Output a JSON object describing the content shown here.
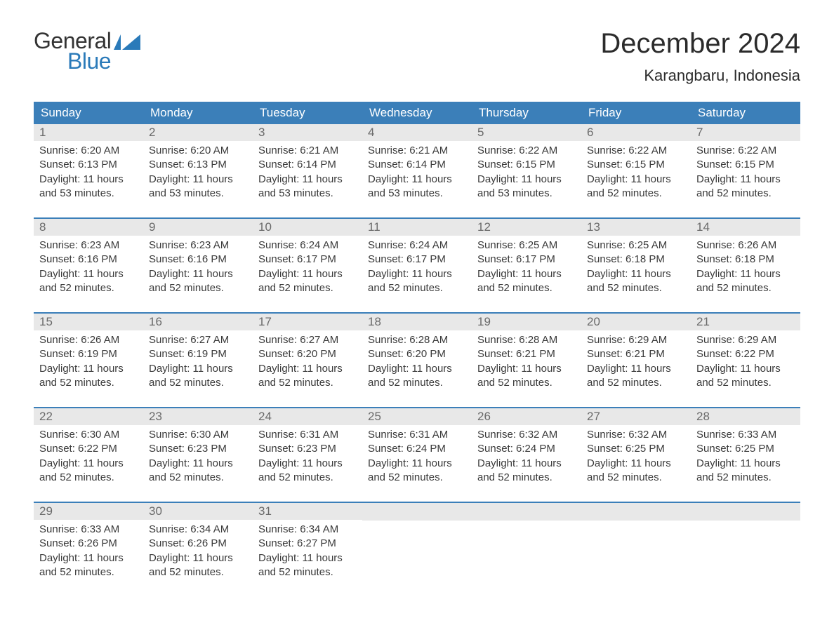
{
  "logo": {
    "general": "General",
    "blue": "Blue",
    "flag_color": "#2a7ab9"
  },
  "title": "December 2024",
  "location": "Karangbaru, Indonesia",
  "colors": {
    "header_bg": "#3b7fb9",
    "header_text": "#ffffff",
    "daynum_bg": "#e8e8e8",
    "daynum_text": "#6a6a6a",
    "body_text": "#3a3a3a",
    "week_border": "#3b7fb9",
    "logo_blue": "#2a7ab9",
    "logo_dark": "#333333",
    "page_bg": "#ffffff"
  },
  "typography": {
    "title_fontsize": 40,
    "location_fontsize": 22,
    "dayhead_fontsize": 17,
    "daynum_fontsize": 17,
    "daydata_fontsize": 15
  },
  "day_headers": [
    "Sunday",
    "Monday",
    "Tuesday",
    "Wednesday",
    "Thursday",
    "Friday",
    "Saturday"
  ],
  "weeks": [
    [
      {
        "n": "1",
        "sunrise": "Sunrise: 6:20 AM",
        "sunset": "Sunset: 6:13 PM",
        "d1": "Daylight: 11 hours",
        "d2": "and 53 minutes."
      },
      {
        "n": "2",
        "sunrise": "Sunrise: 6:20 AM",
        "sunset": "Sunset: 6:13 PM",
        "d1": "Daylight: 11 hours",
        "d2": "and 53 minutes."
      },
      {
        "n": "3",
        "sunrise": "Sunrise: 6:21 AM",
        "sunset": "Sunset: 6:14 PM",
        "d1": "Daylight: 11 hours",
        "d2": "and 53 minutes."
      },
      {
        "n": "4",
        "sunrise": "Sunrise: 6:21 AM",
        "sunset": "Sunset: 6:14 PM",
        "d1": "Daylight: 11 hours",
        "d2": "and 53 minutes."
      },
      {
        "n": "5",
        "sunrise": "Sunrise: 6:22 AM",
        "sunset": "Sunset: 6:15 PM",
        "d1": "Daylight: 11 hours",
        "d2": "and 53 minutes."
      },
      {
        "n": "6",
        "sunrise": "Sunrise: 6:22 AM",
        "sunset": "Sunset: 6:15 PM",
        "d1": "Daylight: 11 hours",
        "d2": "and 52 minutes."
      },
      {
        "n": "7",
        "sunrise": "Sunrise: 6:22 AM",
        "sunset": "Sunset: 6:15 PM",
        "d1": "Daylight: 11 hours",
        "d2": "and 52 minutes."
      }
    ],
    [
      {
        "n": "8",
        "sunrise": "Sunrise: 6:23 AM",
        "sunset": "Sunset: 6:16 PM",
        "d1": "Daylight: 11 hours",
        "d2": "and 52 minutes."
      },
      {
        "n": "9",
        "sunrise": "Sunrise: 6:23 AM",
        "sunset": "Sunset: 6:16 PM",
        "d1": "Daylight: 11 hours",
        "d2": "and 52 minutes."
      },
      {
        "n": "10",
        "sunrise": "Sunrise: 6:24 AM",
        "sunset": "Sunset: 6:17 PM",
        "d1": "Daylight: 11 hours",
        "d2": "and 52 minutes."
      },
      {
        "n": "11",
        "sunrise": "Sunrise: 6:24 AM",
        "sunset": "Sunset: 6:17 PM",
        "d1": "Daylight: 11 hours",
        "d2": "and 52 minutes."
      },
      {
        "n": "12",
        "sunrise": "Sunrise: 6:25 AM",
        "sunset": "Sunset: 6:17 PM",
        "d1": "Daylight: 11 hours",
        "d2": "and 52 minutes."
      },
      {
        "n": "13",
        "sunrise": "Sunrise: 6:25 AM",
        "sunset": "Sunset: 6:18 PM",
        "d1": "Daylight: 11 hours",
        "d2": "and 52 minutes."
      },
      {
        "n": "14",
        "sunrise": "Sunrise: 6:26 AM",
        "sunset": "Sunset: 6:18 PM",
        "d1": "Daylight: 11 hours",
        "d2": "and 52 minutes."
      }
    ],
    [
      {
        "n": "15",
        "sunrise": "Sunrise: 6:26 AM",
        "sunset": "Sunset: 6:19 PM",
        "d1": "Daylight: 11 hours",
        "d2": "and 52 minutes."
      },
      {
        "n": "16",
        "sunrise": "Sunrise: 6:27 AM",
        "sunset": "Sunset: 6:19 PM",
        "d1": "Daylight: 11 hours",
        "d2": "and 52 minutes."
      },
      {
        "n": "17",
        "sunrise": "Sunrise: 6:27 AM",
        "sunset": "Sunset: 6:20 PM",
        "d1": "Daylight: 11 hours",
        "d2": "and 52 minutes."
      },
      {
        "n": "18",
        "sunrise": "Sunrise: 6:28 AM",
        "sunset": "Sunset: 6:20 PM",
        "d1": "Daylight: 11 hours",
        "d2": "and 52 minutes."
      },
      {
        "n": "19",
        "sunrise": "Sunrise: 6:28 AM",
        "sunset": "Sunset: 6:21 PM",
        "d1": "Daylight: 11 hours",
        "d2": "and 52 minutes."
      },
      {
        "n": "20",
        "sunrise": "Sunrise: 6:29 AM",
        "sunset": "Sunset: 6:21 PM",
        "d1": "Daylight: 11 hours",
        "d2": "and 52 minutes."
      },
      {
        "n": "21",
        "sunrise": "Sunrise: 6:29 AM",
        "sunset": "Sunset: 6:22 PM",
        "d1": "Daylight: 11 hours",
        "d2": "and 52 minutes."
      }
    ],
    [
      {
        "n": "22",
        "sunrise": "Sunrise: 6:30 AM",
        "sunset": "Sunset: 6:22 PM",
        "d1": "Daylight: 11 hours",
        "d2": "and 52 minutes."
      },
      {
        "n": "23",
        "sunrise": "Sunrise: 6:30 AM",
        "sunset": "Sunset: 6:23 PM",
        "d1": "Daylight: 11 hours",
        "d2": "and 52 minutes."
      },
      {
        "n": "24",
        "sunrise": "Sunrise: 6:31 AM",
        "sunset": "Sunset: 6:23 PM",
        "d1": "Daylight: 11 hours",
        "d2": "and 52 minutes."
      },
      {
        "n": "25",
        "sunrise": "Sunrise: 6:31 AM",
        "sunset": "Sunset: 6:24 PM",
        "d1": "Daylight: 11 hours",
        "d2": "and 52 minutes."
      },
      {
        "n": "26",
        "sunrise": "Sunrise: 6:32 AM",
        "sunset": "Sunset: 6:24 PM",
        "d1": "Daylight: 11 hours",
        "d2": "and 52 minutes."
      },
      {
        "n": "27",
        "sunrise": "Sunrise: 6:32 AM",
        "sunset": "Sunset: 6:25 PM",
        "d1": "Daylight: 11 hours",
        "d2": "and 52 minutes."
      },
      {
        "n": "28",
        "sunrise": "Sunrise: 6:33 AM",
        "sunset": "Sunset: 6:25 PM",
        "d1": "Daylight: 11 hours",
        "d2": "and 52 minutes."
      }
    ],
    [
      {
        "n": "29",
        "sunrise": "Sunrise: 6:33 AM",
        "sunset": "Sunset: 6:26 PM",
        "d1": "Daylight: 11 hours",
        "d2": "and 52 minutes."
      },
      {
        "n": "30",
        "sunrise": "Sunrise: 6:34 AM",
        "sunset": "Sunset: 6:26 PM",
        "d1": "Daylight: 11 hours",
        "d2": "and 52 minutes."
      },
      {
        "n": "31",
        "sunrise": "Sunrise: 6:34 AM",
        "sunset": "Sunset: 6:27 PM",
        "d1": "Daylight: 11 hours",
        "d2": "and 52 minutes."
      },
      {
        "empty": true
      },
      {
        "empty": true
      },
      {
        "empty": true
      },
      {
        "empty": true
      }
    ]
  ]
}
